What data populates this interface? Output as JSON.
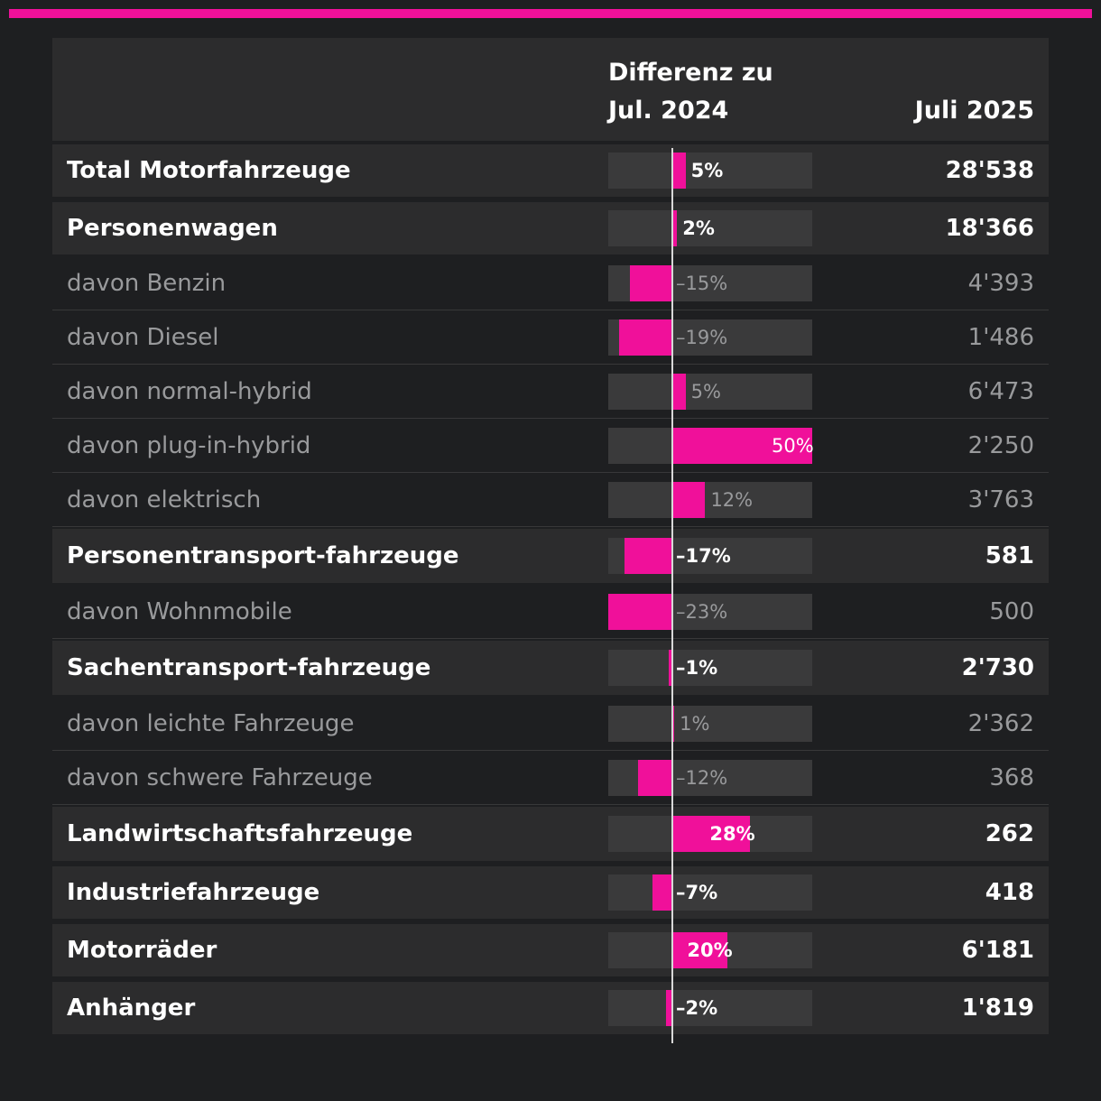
{
  "header": {
    "diff_line1": "Differenz zu",
    "diff_line2": "Jul. 2024",
    "total_label": "Juli 2025"
  },
  "colors": {
    "accent": "#f0109a",
    "background": "#1e1f21",
    "row_bg": "#2c2c2d",
    "track": "#3a3a3b"
  },
  "chart_data": {
    "type": "table",
    "title": "",
    "columns": [
      "",
      "Differenz zu Jul. 2024",
      "Juli 2025"
    ],
    "diff_range": [
      -23,
      50
    ],
    "rows": [
      {
        "label": "Total Motorfahrzeuge",
        "level": "main",
        "diff": 5,
        "diff_text": "5%",
        "value": "28'538"
      },
      {
        "label": "Personenwagen",
        "level": "main",
        "diff": 2,
        "diff_text": "2%",
        "value": "18'366"
      },
      {
        "label": "davon Benzin",
        "level": "sub",
        "diff": -15,
        "diff_text": "–15%",
        "value": "4'393"
      },
      {
        "label": "davon Diesel",
        "level": "sub",
        "diff": -19,
        "diff_text": "–19%",
        "value": "1'486"
      },
      {
        "label": "davon normal-hybrid",
        "level": "sub",
        "diff": 5,
        "diff_text": "5%",
        "value": "6'473"
      },
      {
        "label": "davon plug-in-hybrid",
        "level": "sub",
        "diff": 50,
        "diff_text": "50%",
        "value": "2'250"
      },
      {
        "label": "davon elektrisch",
        "level": "sub",
        "diff": 12,
        "diff_text": "12%",
        "value": "3'763"
      },
      {
        "label": "Personentransport-fahrzeuge",
        "level": "main",
        "diff": -17,
        "diff_text": "–17%",
        "value": "581"
      },
      {
        "label": "davon Wohnmobile",
        "level": "sub",
        "diff": -23,
        "diff_text": "–23%",
        "value": "500"
      },
      {
        "label": "Sachentransport-fahrzeuge",
        "level": "main",
        "diff": -1,
        "diff_text": "–1%",
        "value": "2'730"
      },
      {
        "label": "davon leichte Fahrzeuge",
        "level": "sub",
        "diff": 1,
        "diff_text": "1%",
        "value": "2'362"
      },
      {
        "label": "davon schwere Fahrzeuge",
        "level": "sub",
        "diff": -12,
        "diff_text": "–12%",
        "value": "368"
      },
      {
        "label": "Landwirtschaftsfahrzeuge",
        "level": "main",
        "diff": 28,
        "diff_text": "28%",
        "value": "262"
      },
      {
        "label": "Industriefahrzeuge",
        "level": "main",
        "diff": -7,
        "diff_text": "–7%",
        "value": "418"
      },
      {
        "label": "Motorräder",
        "level": "main",
        "diff": 20,
        "diff_text": "20%",
        "value": "6'181"
      },
      {
        "label": "Anhänger",
        "level": "main",
        "diff": -2,
        "diff_text": "–2%",
        "value": "1'819"
      }
    ]
  }
}
